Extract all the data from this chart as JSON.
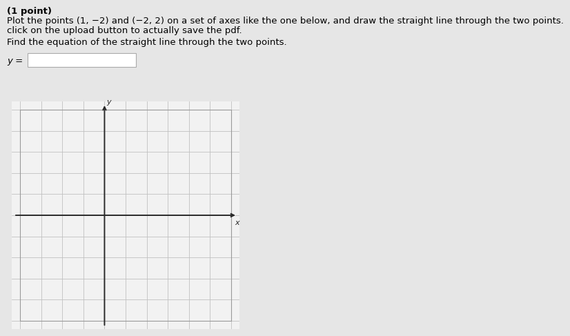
{
  "bg_color": "#e6e6e6",
  "graph_facecolor": "#f2f2f2",
  "grid_color": "#c0c0c0",
  "axis_color": "#2a2a2a",
  "text_color": "#000000",
  "title_line1": "(1 point)",
  "title_line2": "Plot the points (1, −2) and (−2, 2) on a set of axes like the one below, and draw the straight line through the two points.",
  "title_line3": "click on the upload button to actually save the pdf.",
  "subtitle": "Find the equation of the straight line through the two points.",
  "ylabel_eq": "y = ",
  "x_min": -4,
  "x_max": 6,
  "y_min": -5,
  "y_max": 5,
  "xlabel": "x",
  "ylabel": "y",
  "font_size_text": 9.5,
  "input_box_color": "#ffffff",
  "input_box_edge": "#aaaaaa"
}
